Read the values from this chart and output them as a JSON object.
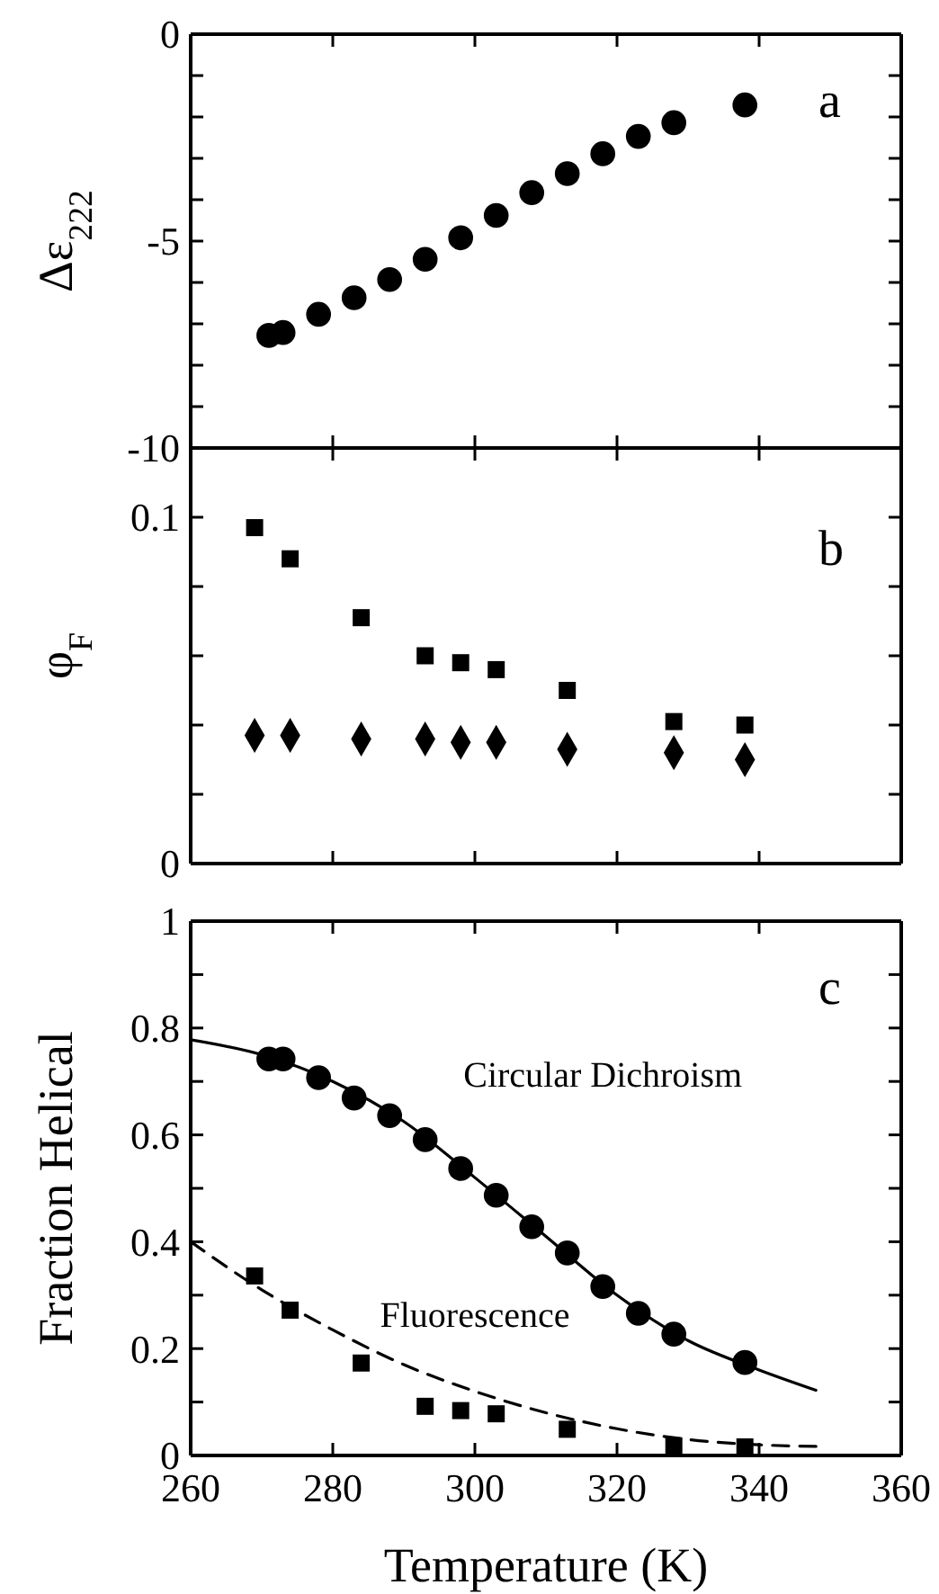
{
  "chart_data": [
    {
      "type": "scatter",
      "ylabel": "Δε$_{222}$",
      "annotations": [
        "a"
      ],
      "xlim": [
        260,
        360
      ],
      "xticks": [
        {
          "value": 260,
          "label": null
        },
        {
          "value": 280,
          "label": null
        },
        {
          "value": 300,
          "label": null
        },
        {
          "value": 320,
          "label": null
        },
        {
          "value": 340,
          "label": null
        },
        {
          "value": 360,
          "label": null
        }
      ],
      "ylim": [
        -10,
        0
      ],
      "yticks": [
        0,
        {
          "value": -1,
          "label": null
        },
        {
          "value": -2,
          "label": null
        },
        {
          "value": -3,
          "label": null
        },
        {
          "value": -4,
          "label": null
        },
        -5,
        {
          "value": -6,
          "label": null
        },
        {
          "value": -7,
          "label": null
        },
        {
          "value": -8,
          "label": null
        },
        {
          "value": -9,
          "label": null
        },
        -10
      ],
      "tick_labels": "y",
      "grid": false,
      "series": [
        {
          "color": "#000000",
          "marker": "circle",
          "x": [
            271,
            273,
            278,
            283,
            288,
            293,
            298,
            303,
            308,
            313,
            318,
            323,
            328,
            338
          ],
          "values": [
            -7.28,
            -7.21,
            -6.77,
            -6.37,
            -5.93,
            -5.44,
            -4.92,
            -4.38,
            -3.83,
            -3.37,
            -2.89,
            -2.47,
            -2.14,
            -1.71
          ]
        }
      ]
    },
    {
      "type": "scatter",
      "ylabel": "φ$_{F}$",
      "annotations": [
        "b"
      ],
      "xlim": [
        260,
        360
      ],
      "xticks": [
        {
          "value": 260,
          "label": null
        },
        {
          "value": 280,
          "label": null
        },
        {
          "value": 300,
          "label": null
        },
        {
          "value": 320,
          "label": null
        },
        {
          "value": 340,
          "label": null
        },
        {
          "value": 360,
          "label": null
        }
      ],
      "ylim": [
        0,
        0.12
      ],
      "yticks": [
        0,
        {
          "value": 0.02,
          "label": null
        },
        {
          "value": 0.04,
          "label": null
        },
        {
          "value": 0.06,
          "label": null
        },
        {
          "value": 0.08,
          "label": null
        },
        0.1
      ],
      "tick_labels": "y",
      "grid": false,
      "series": [
        {
          "color": "#000000",
          "marker": "square",
          "x": [
            269,
            274,
            284,
            293,
            298,
            303,
            313,
            328,
            338
          ],
          "values": [
            0.097,
            0.088,
            0.071,
            0.06,
            0.058,
            0.056,
            0.05,
            0.041,
            0.04
          ]
        },
        {
          "color": "#000000",
          "marker": "diamond",
          "x": [
            269,
            274,
            284,
            293,
            298,
            303,
            313,
            328,
            338
          ],
          "values": [
            0.037,
            0.037,
            0.036,
            0.036,
            0.035,
            0.035,
            0.033,
            0.032,
            0.03
          ]
        }
      ]
    },
    {
      "type": "scatter",
      "xlabel": "Temperature (K)",
      "ylabel": "Fraction Helical",
      "annotations": [
        "c"
      ],
      "xlim": [
        260,
        360
      ],
      "xticks": [
        260,
        280,
        300,
        320,
        340,
        360
      ],
      "ylim": [
        0,
        1
      ],
      "yticks": [
        0,
        {
          "value": 0.1,
          "label": null
        },
        0.2,
        {
          "value": 0.3,
          "label": null
        },
        0.4,
        {
          "value": 0.5,
          "label": null
        },
        0.6,
        {
          "value": 0.7,
          "label": null
        },
        0.8,
        {
          "value": 0.9,
          "label": null
        },
        1
      ],
      "grid": false,
      "series": [
        {
          "type": "line",
          "color": "#000000",
          "marker": "none",
          "line_style": "solid",
          "x": [
            260,
            270,
            280,
            290,
            300,
            310,
            320,
            330,
            340,
            348
          ],
          "values": [
            0.778,
            0.75,
            0.7,
            0.625,
            0.52,
            0.41,
            0.3,
            0.215,
            0.16,
            0.122
          ]
        },
        {
          "type": "line",
          "color": "#000000",
          "marker": "none",
          "line_style": "dashed",
          "x": [
            260,
            270,
            280,
            290,
            300,
            310,
            320,
            330,
            340,
            348
          ],
          "values": [
            0.4,
            0.31,
            0.235,
            0.17,
            0.12,
            0.08,
            0.05,
            0.03,
            0.02,
            0.017
          ]
        },
        {
          "name": "Circular Dichroism",
          "color": "#000000",
          "marker": "circle",
          "x": [
            271,
            273,
            278,
            283,
            288,
            293,
            298,
            303,
            308,
            313,
            318,
            323,
            328,
            338
          ],
          "values": [
            0.742,
            0.742,
            0.707,
            0.669,
            0.636,
            0.591,
            0.537,
            0.487,
            0.428,
            0.379,
            0.316,
            0.266,
            0.227,
            0.174
          ]
        },
        {
          "name": "Fluorescence",
          "color": "#000000",
          "marker": "square",
          "x": [
            269,
            274,
            284,
            293,
            298,
            303,
            313,
            328,
            338
          ],
          "values": [
            0.336,
            0.272,
            0.173,
            0.092,
            0.084,
            0.078,
            0.049,
            0.018,
            0.016
          ]
        }
      ]
    }
  ]
}
